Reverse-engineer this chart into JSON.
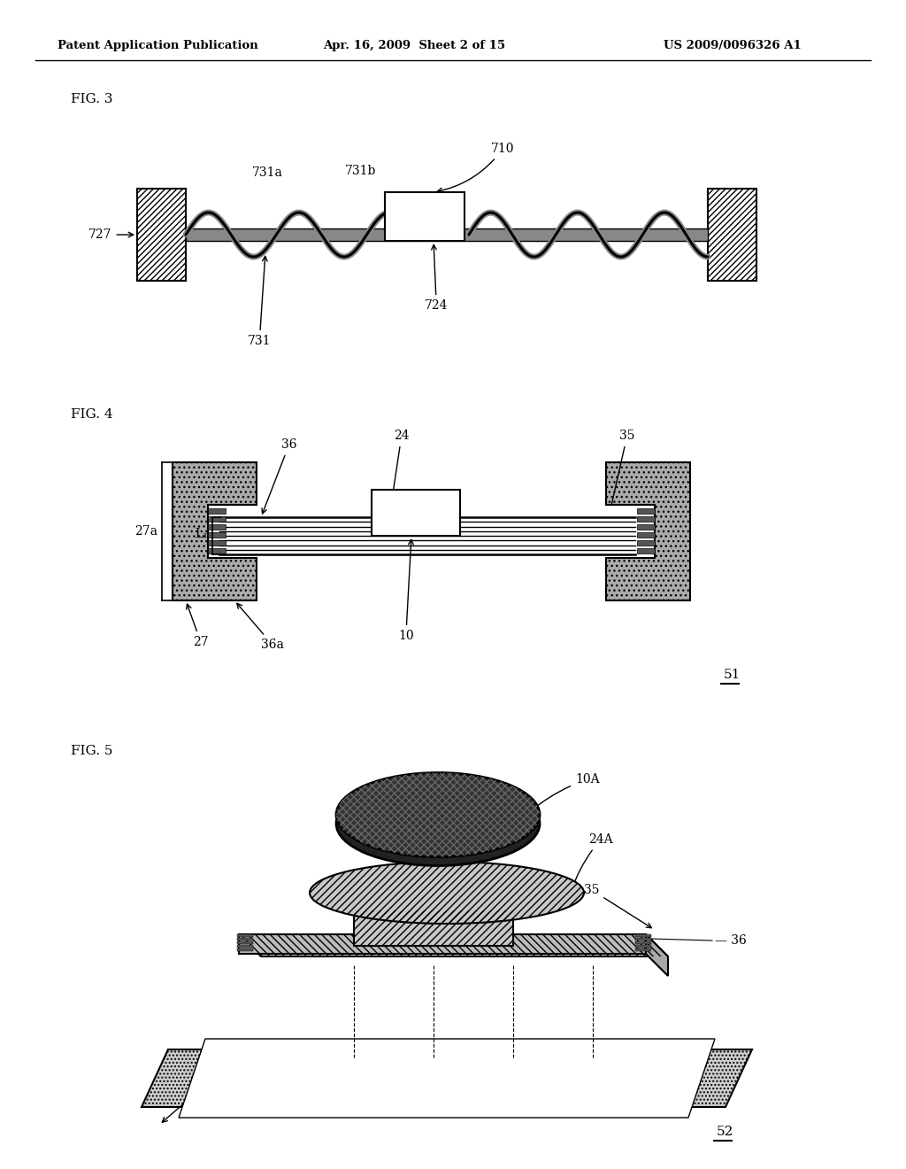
{
  "header_left": "Patent Application Publication",
  "header_mid": "Apr. 16, 2009  Sheet 2 of 15",
  "header_right": "US 2009/0096326 A1",
  "fig3_label": "FIG. 3",
  "fig4_label": "FIG. 4",
  "fig5_label": "FIG. 5",
  "bg_color": "#ffffff",
  "text_color": "#000000"
}
